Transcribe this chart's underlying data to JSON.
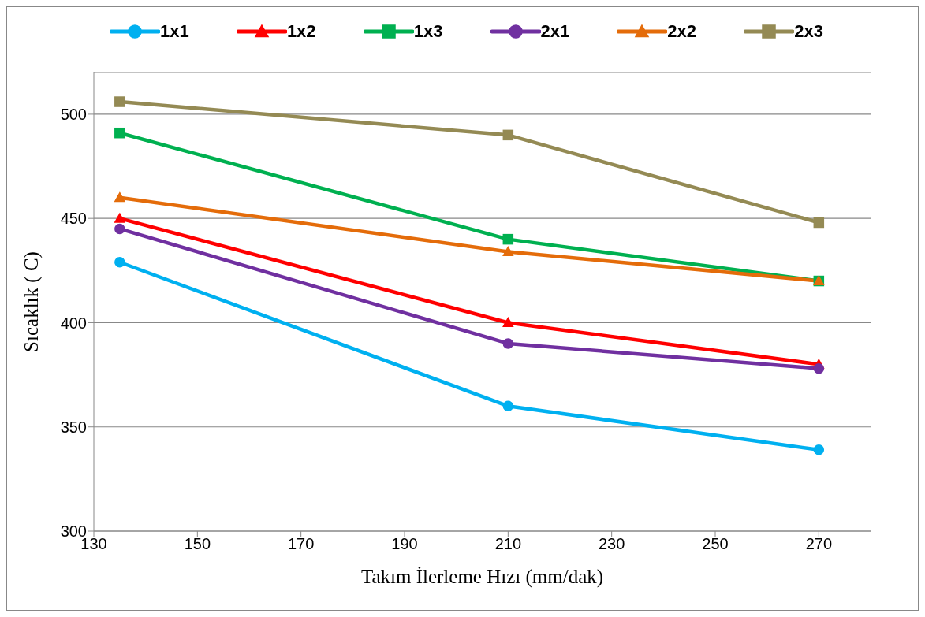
{
  "chart_data": {
    "type": "line",
    "xlabel": "Takım İlerleme Hızı (mm/dak)",
    "ylabel": "Sıcaklık ( C)",
    "x": [
      135,
      210,
      270
    ],
    "xlim": [
      130,
      280
    ],
    "xticks": [
      130,
      150,
      170,
      190,
      210,
      230,
      250,
      270
    ],
    "ylim": [
      300,
      520
    ],
    "yticks": [
      300,
      350,
      400,
      450,
      500
    ],
    "grid": "y",
    "legend": "top",
    "line_style": "solid",
    "series": [
      {
        "name": "1x1",
        "color": "#00b0f0",
        "marker": "circle",
        "values": [
          429,
          360,
          339
        ]
      },
      {
        "name": "1x2",
        "color": "#ff0000",
        "marker": "triangle",
        "values": [
          450,
          400,
          380
        ]
      },
      {
        "name": "1x3",
        "color": "#00b050",
        "marker": "square",
        "values": [
          491,
          440,
          420
        ]
      },
      {
        "name": "2x1",
        "color": "#7030a0",
        "marker": "circle",
        "values": [
          445,
          390,
          378
        ]
      },
      {
        "name": "2x2",
        "color": "#e46c0a",
        "marker": "triangle",
        "values": [
          460,
          434,
          420
        ]
      },
      {
        "name": "2x3",
        "color": "#948a54",
        "marker": "square",
        "values": [
          506,
          490,
          448
        ]
      }
    ]
  }
}
